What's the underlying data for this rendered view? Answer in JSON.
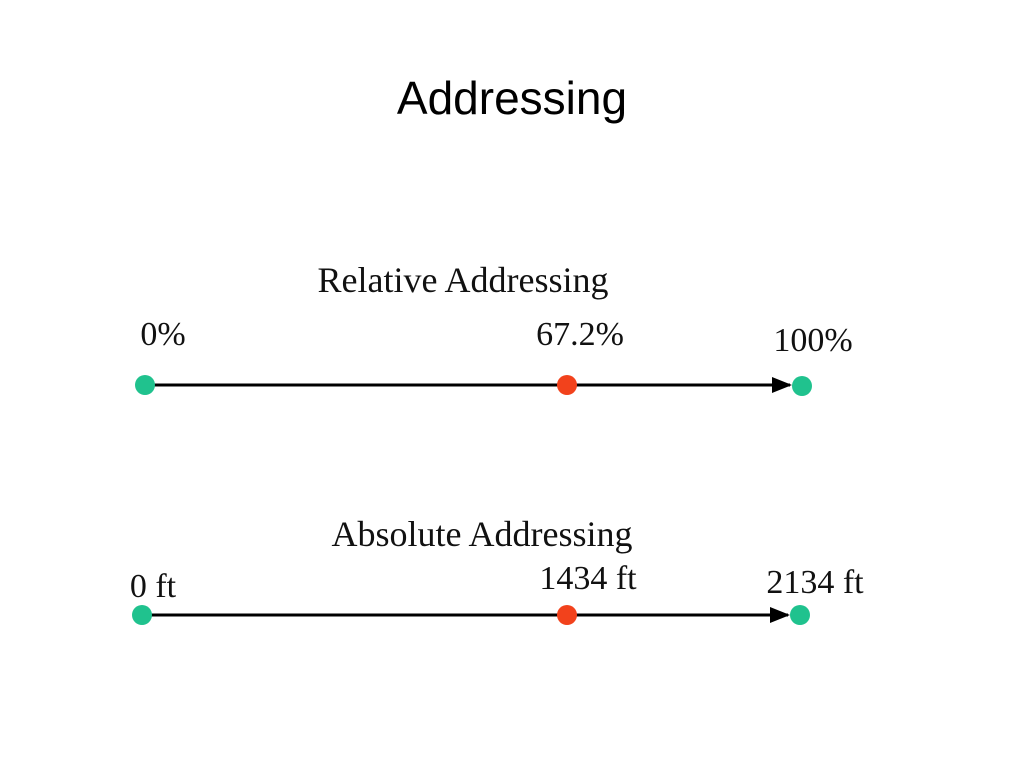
{
  "title": "Addressing",
  "diagrams": [
    {
      "heading": "Relative Addressing",
      "labels": [
        "0%",
        "67.2%",
        "100%"
      ]
    },
    {
      "heading": "Absolute Addressing",
      "labels": [
        "0 ft",
        "1434 ft",
        "2134 ft"
      ]
    }
  ]
}
